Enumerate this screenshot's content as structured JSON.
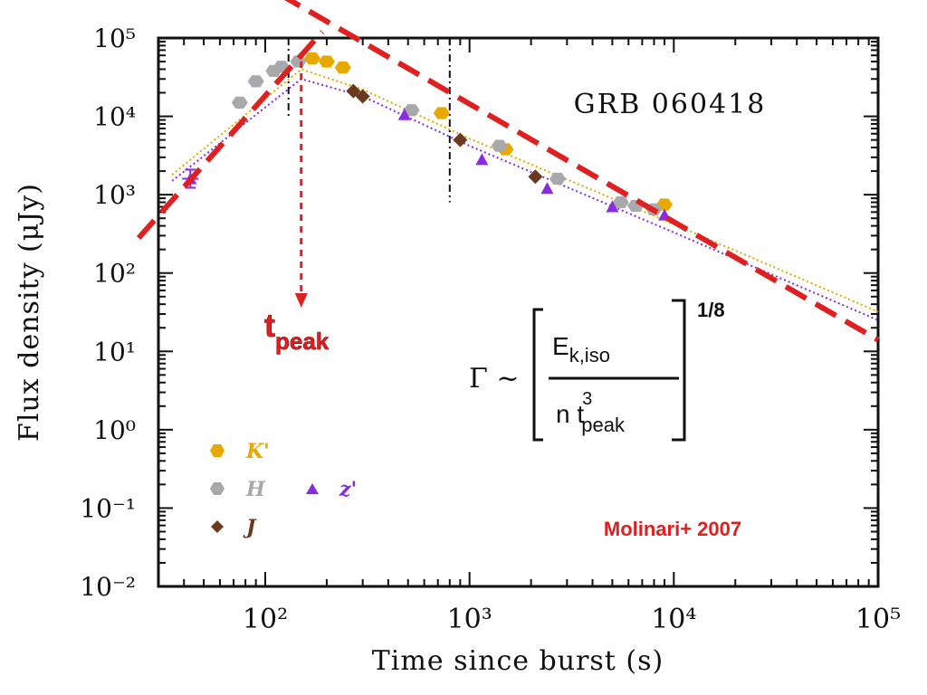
{
  "chart_data": {
    "type": "scatter",
    "title": "GRB 060418",
    "xlabel": "Time since burst (s)",
    "ylabel": "Flux density (μJy)",
    "xscale": "log",
    "yscale": "log",
    "xlim": [
      30,
      100000
    ],
    "ylim": [
      0.01,
      100000
    ],
    "x_tick_labels": [
      "10²",
      "10³",
      "10⁴",
      "10⁵"
    ],
    "y_tick_labels": [
      "10⁻²",
      "10⁻¹",
      "10⁰",
      "10¹",
      "10²",
      "10³",
      "10⁴",
      "10⁵"
    ],
    "grid": false,
    "legend_placement": "bottom-left",
    "series": [
      {
        "name": "K'",
        "color": "#E8A800",
        "marker": "hexagon",
        "points": [
          [
            170,
            55000
          ],
          [
            200,
            50000
          ],
          [
            240,
            42000
          ],
          [
            730,
            11000
          ],
          [
            1500,
            3800
          ],
          [
            9000,
            750
          ]
        ]
      },
      {
        "name": "H",
        "color": "#A7A9AC",
        "marker": "hexagon",
        "points": [
          [
            75,
            15000
          ],
          [
            90,
            28000
          ],
          [
            110,
            38000
          ],
          [
            120,
            43000
          ],
          [
            145,
            50000
          ],
          [
            520,
            12000
          ],
          [
            1400,
            4200
          ],
          [
            2700,
            1600
          ],
          [
            5500,
            800
          ],
          [
            6500,
            720
          ],
          [
            8000,
            650
          ]
        ]
      },
      {
        "name": "z'",
        "color": "#8A2BE2",
        "marker": "triangle",
        "points": [
          [
            43,
            1600
          ],
          [
            480,
            10500
          ],
          [
            1150,
            2800
          ],
          [
            2400,
            1200
          ],
          [
            5000,
            700
          ],
          [
            9000,
            550
          ]
        ]
      },
      {
        "name": "J",
        "color": "#6B3A1E",
        "marker": "diamond",
        "points": [
          [
            270,
            21000
          ],
          [
            300,
            18000
          ],
          [
            900,
            5000
          ],
          [
            2100,
            1700
          ]
        ]
      }
    ],
    "model_curves": [
      {
        "color": "#8A2BE2",
        "style": "dotted",
        "points": [
          [
            35,
            1500
          ],
          [
            150,
            30000
          ],
          [
            300,
            18000
          ],
          [
            1000,
            4200
          ],
          [
            10000,
            330
          ],
          [
            100000,
            25
          ]
        ]
      },
      {
        "color": "#E8A800",
        "style": "dotted",
        "points": [
          [
            35,
            1800
          ],
          [
            150,
            40000
          ],
          [
            300,
            22000
          ],
          [
            1000,
            5200
          ],
          [
            10000,
            420
          ],
          [
            100000,
            32
          ]
        ]
      }
    ],
    "vertical_lines": [
      {
        "x": 130,
        "style": "dash-dot"
      },
      {
        "x": 800,
        "style": "dash-dot"
      }
    ],
    "overlay_lines": [
      {
        "color": "#E02020",
        "style": "dashed",
        "points": [
          [
            24,
            280
          ],
          [
            190,
            120000
          ]
        ]
      },
      {
        "color": "#E02020",
        "style": "dashed",
        "points": [
          [
            60,
            1000000
          ],
          [
            100000,
            14
          ]
        ]
      }
    ],
    "annotations": {
      "t_peak_main": "t",
      "t_peak_sub": "peak",
      "t_peak_x": 150,
      "formula": {
        "lhs": "Γ ~",
        "numerator_main": "E",
        "numerator_sub": "k,iso",
        "denominator_prefix": "n t",
        "denominator_sup": "3",
        "denominator_sub": "peak",
        "exponent": "1/8"
      },
      "citation": "Molinari+ 2007",
      "accent_color": "#E02020"
    }
  }
}
